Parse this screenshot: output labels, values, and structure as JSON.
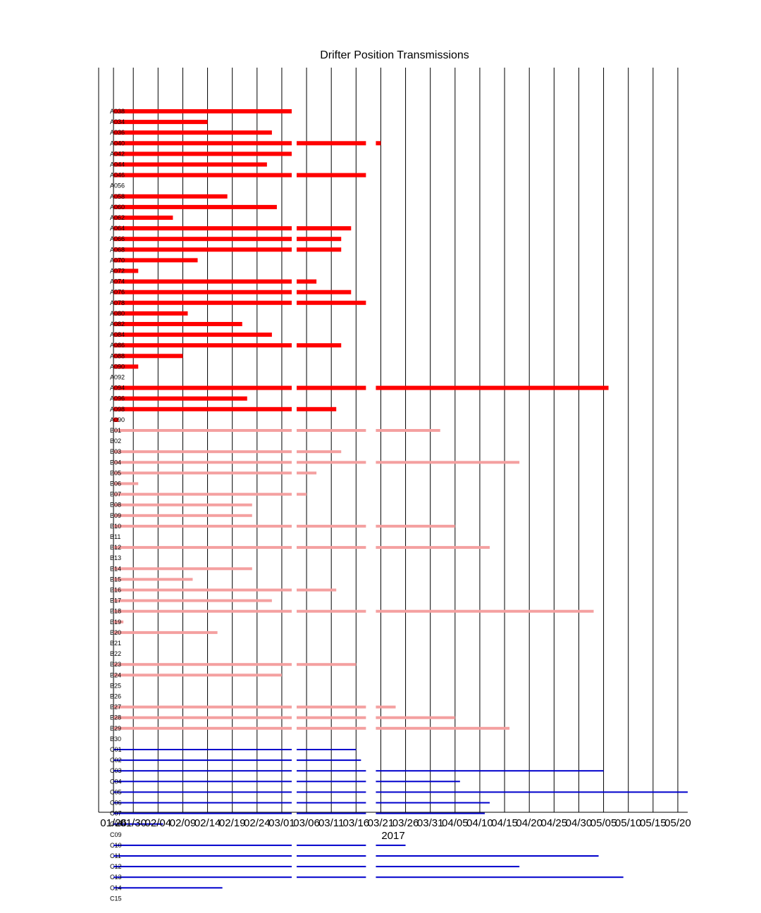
{
  "chart_data": {
    "type": "timeline",
    "title": "Drifter Position Transmissions",
    "xlabel": "2017",
    "x_tick_labels": [
      "01/26",
      "01/30",
      "02/04",
      "02/09",
      "02/14",
      "02/19",
      "02/24",
      "03/01",
      "03/06",
      "03/11",
      "03/16",
      "03/21",
      "03/26",
      "03/31",
      "04/05",
      "04/10",
      "04/15",
      "04/20",
      "04/25",
      "04/30",
      "05/05",
      "05/10",
      "05/15",
      "05/20"
    ],
    "xlim": [
      "01/23",
      "05/22"
    ],
    "grid": true,
    "colors": {
      "A": "#ff0000",
      "B": "#f4a0a0",
      "C": "#0000cc"
    },
    "gaps": [
      [
        "03/03",
        "03/04"
      ],
      [
        "03/18",
        "03/20"
      ]
    ],
    "drifters": [
      {
        "label": "A038",
        "group": "A",
        "start": "01/26",
        "end": "03/03"
      },
      {
        "label": "A034",
        "group": "A",
        "start": "01/26",
        "end": "02/14"
      },
      {
        "label": "A036",
        "group": "A",
        "start": "01/26",
        "end": "02/27"
      },
      {
        "label": "A040",
        "group": "A",
        "start": "01/26",
        "end": "03/21"
      },
      {
        "label": "A042",
        "group": "A",
        "start": "01/26",
        "end": "03/03"
      },
      {
        "label": "A044",
        "group": "A",
        "start": "01/26",
        "end": "02/26"
      },
      {
        "label": "A046",
        "group": "A",
        "start": "01/26",
        "end": "03/20"
      },
      {
        "label": "A056",
        "group": "A",
        "start": null,
        "end": null
      },
      {
        "label": "A058",
        "group": "A",
        "start": "01/26",
        "end": "02/18"
      },
      {
        "label": "A060",
        "group": "A",
        "start": "01/26",
        "end": "02/28"
      },
      {
        "label": "A062",
        "group": "A",
        "start": "01/26",
        "end": "02/07"
      },
      {
        "label": "A064",
        "group": "A",
        "start": "01/26",
        "end": "03/15"
      },
      {
        "label": "A066",
        "group": "A",
        "start": "01/26",
        "end": "03/13"
      },
      {
        "label": "A068",
        "group": "A",
        "start": "01/26",
        "end": "03/13"
      },
      {
        "label": "A070",
        "group": "A",
        "start": "01/26",
        "end": "02/12"
      },
      {
        "label": "A072",
        "group": "A",
        "start": "01/26",
        "end": "01/31"
      },
      {
        "label": "A074",
        "group": "A",
        "start": "01/26",
        "end": "03/08"
      },
      {
        "label": "A076",
        "group": "A",
        "start": "01/26",
        "end": "03/15"
      },
      {
        "label": "A078",
        "group": "A",
        "start": "01/26",
        "end": "03/19"
      },
      {
        "label": "A080",
        "group": "A",
        "start": "01/26",
        "end": "02/10"
      },
      {
        "label": "A082",
        "group": "A",
        "start": "01/26",
        "end": "02/21"
      },
      {
        "label": "A084",
        "group": "A",
        "start": "01/26",
        "end": "02/27"
      },
      {
        "label": "A086",
        "group": "A",
        "start": "01/26",
        "end": "03/13"
      },
      {
        "label": "A088",
        "group": "A",
        "start": "01/26",
        "end": "02/09"
      },
      {
        "label": "A090",
        "group": "A",
        "start": "01/26",
        "end": "01/31"
      },
      {
        "label": "A092",
        "group": "A",
        "start": null,
        "end": null
      },
      {
        "label": "A094",
        "group": "A",
        "start": "01/26",
        "end": "05/06"
      },
      {
        "label": "A096",
        "group": "A",
        "start": "01/26",
        "end": "02/22"
      },
      {
        "label": "A098",
        "group": "A",
        "start": "01/26",
        "end": "03/12"
      },
      {
        "label": "A090",
        "group": "A",
        "start": "01/26",
        "end": "01/27"
      },
      {
        "label": "B01",
        "group": "B",
        "start": "01/26",
        "end": "04/02"
      },
      {
        "label": "B02",
        "group": "B",
        "start": null,
        "end": null
      },
      {
        "label": "B03",
        "group": "B",
        "start": "01/26",
        "end": "03/13"
      },
      {
        "label": "B04",
        "group": "B",
        "start": "01/26",
        "end": "04/18"
      },
      {
        "label": "B05",
        "group": "B",
        "start": "01/26",
        "end": "03/08"
      },
      {
        "label": "B06",
        "group": "B",
        "start": "01/26",
        "end": "01/31"
      },
      {
        "label": "B07",
        "group": "B",
        "start": "01/26",
        "end": "03/06"
      },
      {
        "label": "B08",
        "group": "B",
        "start": "01/26",
        "end": "02/23"
      },
      {
        "label": "B09",
        "group": "B",
        "start": "01/26",
        "end": "02/23"
      },
      {
        "label": "B10",
        "group": "B",
        "start": "01/26",
        "end": "04/05"
      },
      {
        "label": "B11",
        "group": "B",
        "start": null,
        "end": null
      },
      {
        "label": "B12",
        "group": "B",
        "start": "01/26",
        "end": "04/12"
      },
      {
        "label": "B13",
        "group": "B",
        "start": null,
        "end": null
      },
      {
        "label": "B14",
        "group": "B",
        "start": "01/26",
        "end": "02/23"
      },
      {
        "label": "B15",
        "group": "B",
        "start": "01/26",
        "end": "02/11"
      },
      {
        "label": "B16",
        "group": "B",
        "start": "01/26",
        "end": "03/12"
      },
      {
        "label": "B17",
        "group": "B",
        "start": "01/26",
        "end": "02/27"
      },
      {
        "label": "B18",
        "group": "B",
        "start": "01/26",
        "end": "05/03"
      },
      {
        "label": "B19",
        "group": "B",
        "start": "01/26",
        "end": "01/28"
      },
      {
        "label": "B20",
        "group": "B",
        "start": "01/26",
        "end": "02/16"
      },
      {
        "label": "B21",
        "group": "B",
        "start": null,
        "end": null
      },
      {
        "label": "B22",
        "group": "B",
        "start": null,
        "end": null
      },
      {
        "label": "B23",
        "group": "B",
        "start": "01/26",
        "end": "03/16"
      },
      {
        "label": "B24",
        "group": "B",
        "start": "01/26",
        "end": "03/01"
      },
      {
        "label": "B25",
        "group": "B",
        "start": null,
        "end": null
      },
      {
        "label": "B26",
        "group": "B",
        "start": null,
        "end": null
      },
      {
        "label": "B27",
        "group": "B",
        "start": "01/26",
        "end": "03/24"
      },
      {
        "label": "B28",
        "group": "B",
        "start": "01/26",
        "end": "04/05"
      },
      {
        "label": "B29",
        "group": "B",
        "start": "01/26",
        "end": "04/16"
      },
      {
        "label": "B30",
        "group": "B",
        "start": null,
        "end": null
      },
      {
        "label": "C01",
        "group": "C",
        "start": "01/26",
        "end": "03/16"
      },
      {
        "label": "C02",
        "group": "C",
        "start": "01/26",
        "end": "03/17"
      },
      {
        "label": "C03",
        "group": "C",
        "start": "01/26",
        "end": "05/05"
      },
      {
        "label": "C04",
        "group": "C",
        "start": "01/26",
        "end": "04/06"
      },
      {
        "label": "C05",
        "group": "C",
        "start": "01/26",
        "end": "05/22"
      },
      {
        "label": "C06",
        "group": "C",
        "start": "01/26",
        "end": "04/12"
      },
      {
        "label": "C07",
        "group": "C",
        "start": "01/26",
        "end": "04/11"
      },
      {
        "label": "C08",
        "group": "C",
        "start": "01/26",
        "end": "02/05"
      },
      {
        "label": "C09",
        "group": "C",
        "start": null,
        "end": null
      },
      {
        "label": "C10",
        "group": "C",
        "start": "01/26",
        "end": "03/26"
      },
      {
        "label": "C11",
        "group": "C",
        "start": "01/26",
        "end": "05/04"
      },
      {
        "label": "C12",
        "group": "C",
        "start": "01/26",
        "end": "04/18"
      },
      {
        "label": "C13",
        "group": "C",
        "start": "01/26",
        "end": "05/09"
      },
      {
        "label": "C14",
        "group": "C",
        "start": "01/26",
        "end": "02/17"
      },
      {
        "label": "C15",
        "group": "C",
        "start": null,
        "end": null
      }
    ]
  }
}
